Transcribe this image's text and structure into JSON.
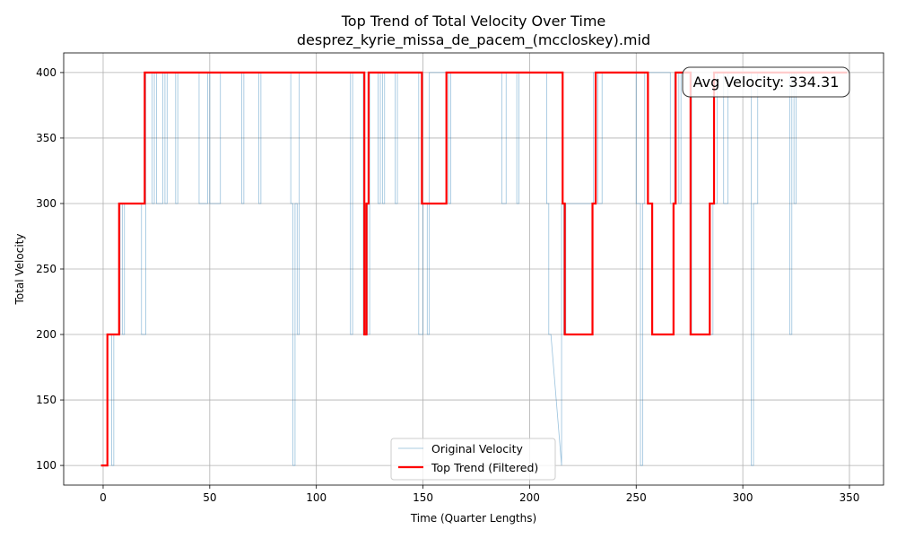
{
  "chart_data": {
    "type": "line",
    "title": "Top Trend of Total Velocity Over Time",
    "subtitle": "desprez_kyrie_missa_de_pacem_(mccloskey).mid",
    "xlabel": "Time (Quarter Lengths)",
    "ylabel": "Total Velocity",
    "xlim": [
      -18.5,
      366
    ],
    "ylim": [
      85,
      415
    ],
    "xticks": [
      0,
      50,
      100,
      150,
      200,
      250,
      300,
      350
    ],
    "yticks": [
      100,
      150,
      200,
      250,
      300,
      350,
      400
    ],
    "grid": true,
    "legend_position": "bottom-center",
    "annotation": "Avg Velocity: 334.31",
    "colors": {
      "original": "#1f77b4",
      "trend": "#ff0000"
    },
    "series": [
      {
        "name": "Original Velocity",
        "style": "step-thin",
        "points": [
          [
            0,
            100
          ],
          [
            2,
            100
          ],
          [
            2,
            200
          ],
          [
            4,
            200
          ],
          [
            4,
            100
          ],
          [
            5,
            100
          ],
          [
            5,
            200
          ],
          [
            8,
            200
          ],
          [
            8,
            300
          ],
          [
            9,
            300
          ],
          [
            9,
            200
          ],
          [
            10,
            200
          ],
          [
            10,
            300
          ],
          [
            18,
            300
          ],
          [
            18,
            200
          ],
          [
            20,
            200
          ],
          [
            20,
            400
          ],
          [
            23,
            400
          ],
          [
            23,
            300
          ],
          [
            24,
            300
          ],
          [
            24,
            400
          ],
          [
            25,
            400
          ],
          [
            25,
            300
          ],
          [
            28,
            300
          ],
          [
            28,
            400
          ],
          [
            29,
            400
          ],
          [
            29,
            300
          ],
          [
            30,
            300
          ],
          [
            30,
            400
          ],
          [
            34,
            400
          ],
          [
            34,
            300
          ],
          [
            35,
            300
          ],
          [
            35,
            400
          ],
          [
            45,
            400
          ],
          [
            45,
            300
          ],
          [
            49,
            300
          ],
          [
            49,
            400
          ],
          [
            50,
            400
          ],
          [
            50,
            300
          ],
          [
            55,
            300
          ],
          [
            55,
            400
          ],
          [
            65,
            400
          ],
          [
            65,
            300
          ],
          [
            66,
            300
          ],
          [
            66,
            400
          ],
          [
            73,
            400
          ],
          [
            73,
            300
          ],
          [
            74,
            300
          ],
          [
            74,
            400
          ],
          [
            88,
            400
          ],
          [
            88,
            300
          ],
          [
            89,
            300
          ],
          [
            89,
            100
          ],
          [
            90,
            100
          ],
          [
            90,
            300
          ],
          [
            91,
            300
          ],
          [
            91,
            200
          ],
          [
            92,
            200
          ],
          [
            92,
            400
          ],
          [
            116,
            400
          ],
          [
            116,
            200
          ],
          [
            117,
            200
          ],
          [
            117,
            400
          ],
          [
            122,
            400
          ],
          [
            122,
            200
          ],
          [
            123,
            200
          ],
          [
            123,
            300
          ],
          [
            124,
            300
          ],
          [
            124,
            200
          ],
          [
            125,
            200
          ],
          [
            125,
            400
          ],
          [
            129,
            400
          ],
          [
            129,
            300
          ],
          [
            130,
            300
          ],
          [
            130,
            400
          ],
          [
            131,
            400
          ],
          [
            131,
            300
          ],
          [
            132,
            300
          ],
          [
            132,
            400
          ],
          [
            137,
            400
          ],
          [
            137,
            300
          ],
          [
            138,
            300
          ],
          [
            138,
            400
          ],
          [
            148,
            400
          ],
          [
            148,
            200
          ],
          [
            150,
            200
          ],
          [
            150,
            300
          ],
          [
            152,
            300
          ],
          [
            152,
            200
          ],
          [
            153,
            200
          ],
          [
            153,
            400
          ],
          [
            162,
            400
          ],
          [
            162,
            300
          ],
          [
            163,
            300
          ],
          [
            163,
            400
          ],
          [
            187,
            400
          ],
          [
            187,
            300
          ],
          [
            189,
            300
          ],
          [
            189,
            400
          ],
          [
            194,
            400
          ],
          [
            194,
            300
          ],
          [
            195,
            300
          ],
          [
            195,
            400
          ],
          [
            208,
            400
          ],
          [
            208,
            300
          ],
          [
            209,
            300
          ],
          [
            209,
            200
          ],
          [
            210,
            200
          ],
          [
            215,
            100
          ],
          [
            215,
            300
          ],
          [
            216,
            300
          ],
          [
            216,
            200
          ],
          [
            217,
            200
          ],
          [
            217,
            300
          ],
          [
            230,
            300
          ],
          [
            230,
            400
          ],
          [
            232,
            400
          ],
          [
            232,
            300
          ],
          [
            234,
            300
          ],
          [
            234,
            400
          ],
          [
            250,
            400
          ],
          [
            250,
            300
          ],
          [
            252,
            300
          ],
          [
            252,
            100
          ],
          [
            253,
            100
          ],
          [
            253,
            300
          ],
          [
            254,
            300
          ],
          [
            254,
            400
          ],
          [
            266,
            400
          ],
          [
            266,
            300
          ],
          [
            268,
            300
          ],
          [
            268,
            400
          ],
          [
            270,
            400
          ],
          [
            270,
            300
          ],
          [
            271,
            300
          ],
          [
            271,
            400
          ],
          [
            276,
            400
          ],
          [
            276,
            200
          ],
          [
            286,
            200
          ],
          [
            286,
            300
          ],
          [
            288,
            300
          ],
          [
            288,
            400
          ],
          [
            291,
            400
          ],
          [
            291,
            300
          ],
          [
            293,
            300
          ],
          [
            293,
            400
          ],
          [
            304,
            400
          ],
          [
            304,
            100
          ],
          [
            305,
            100
          ],
          [
            305,
            300
          ],
          [
            307,
            300
          ],
          [
            307,
            400
          ],
          [
            322,
            400
          ],
          [
            322,
            200
          ],
          [
            323,
            200
          ],
          [
            323,
            400
          ],
          [
            324,
            400
          ],
          [
            324,
            300
          ],
          [
            325,
            300
          ],
          [
            325,
            400
          ],
          [
            349,
            400
          ]
        ]
      },
      {
        "name": "Top Trend (Filtered)",
        "style": "step-thick",
        "points": [
          [
            -1,
            100
          ],
          [
            2,
            100
          ],
          [
            2,
            200
          ],
          [
            7.5,
            200
          ],
          [
            7.5,
            300
          ],
          [
            19.5,
            300
          ],
          [
            19.5,
            400
          ],
          [
            122.5,
            400
          ],
          [
            122.5,
            200
          ],
          [
            123.5,
            200
          ],
          [
            123.5,
            300
          ],
          [
            124.5,
            300
          ],
          [
            124.5,
            400
          ],
          [
            149.5,
            400
          ],
          [
            149.5,
            300
          ],
          [
            161,
            300
          ],
          [
            161,
            400
          ],
          [
            215.5,
            400
          ],
          [
            215.5,
            300
          ],
          [
            216.5,
            300
          ],
          [
            216.5,
            200
          ],
          [
            229.5,
            200
          ],
          [
            229.5,
            300
          ],
          [
            231,
            300
          ],
          [
            231,
            400
          ],
          [
            255.5,
            400
          ],
          [
            255.5,
            300
          ],
          [
            257.5,
            300
          ],
          [
            257.5,
            200
          ],
          [
            267.5,
            200
          ],
          [
            267.5,
            300
          ],
          [
            268.5,
            300
          ],
          [
            268.5,
            400
          ],
          [
            275.5,
            400
          ],
          [
            275.5,
            200
          ],
          [
            284.5,
            200
          ],
          [
            284.5,
            300
          ],
          [
            286.5,
            300
          ],
          [
            286.5,
            400
          ],
          [
            349,
            400
          ]
        ]
      }
    ]
  }
}
